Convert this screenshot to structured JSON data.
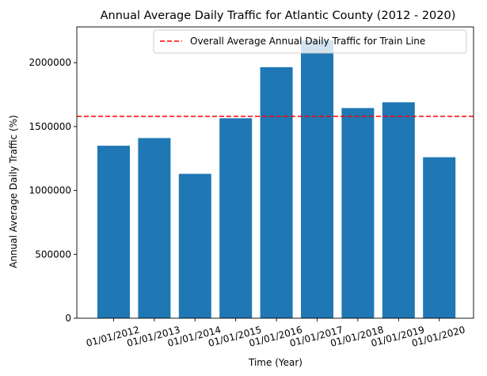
{
  "chart_data": {
    "type": "bar",
    "title": "Annual Average Daily Traffic for Atlantic County (2012 - 2020)",
    "xlabel": "Time (Year)",
    "ylabel": "Annual Average Daily Traffic (%)",
    "categories": [
      "01/01/2012",
      "01/01/2013",
      "01/01/2014",
      "01/01/2015",
      "01/01/2016",
      "01/01/2017",
      "01/01/2018",
      "01/01/2019",
      "01/01/2020"
    ],
    "values": [
      1350000,
      1410000,
      1130000,
      1565000,
      1965000,
      2175000,
      1645000,
      1690000,
      1260000
    ],
    "ylim": [
      0,
      2280000
    ],
    "yticks": [
      0,
      500000,
      1000000,
      1500000,
      2000000
    ],
    "ytick_labels": [
      "0",
      "500000",
      "1000000",
      "1500000",
      "2000000"
    ],
    "reference_line": {
      "label": "Overall Average Annual Daily Traffic for Train Line",
      "value": 1580000,
      "color": "#ff0000",
      "style": "dashed"
    },
    "bar_color": "#1f77b4",
    "legend_position": "upper right",
    "grid": false
  }
}
